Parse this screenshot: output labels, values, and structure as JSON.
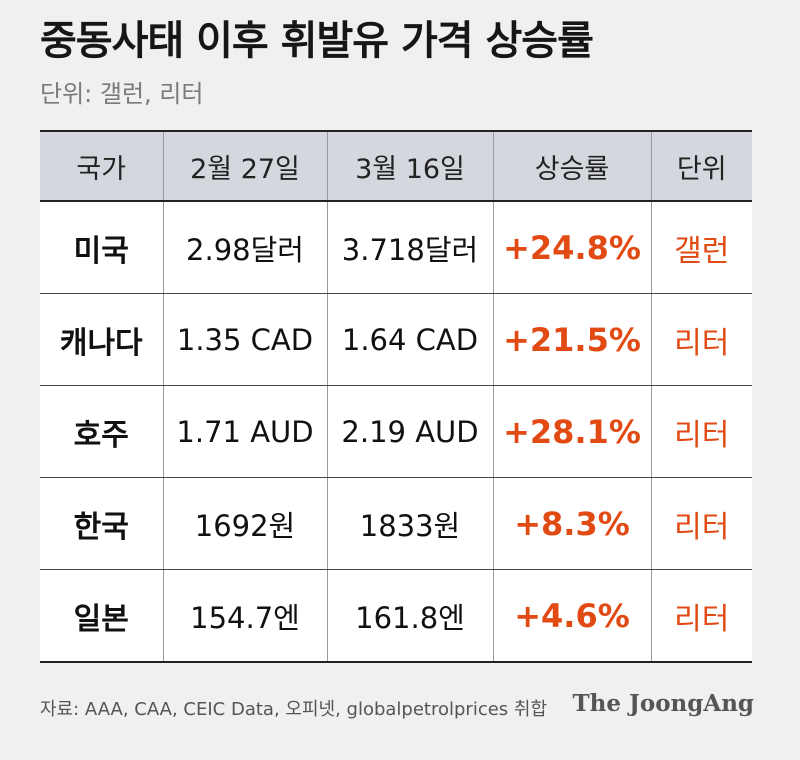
{
  "title": "중동사태 이후 휘발유 가격 상승률",
  "subtitle": "단위: 갤런, 리터",
  "colors": {
    "accent": "#e24a14",
    "header_bg": "#d4d8de",
    "page_bg": "#f0f0f2"
  },
  "table": {
    "headers": [
      "국가",
      "2월 27일",
      "3월 16일",
      "상승률",
      "단위"
    ],
    "rows": [
      [
        "미국",
        "2.98달러",
        "3.718달러",
        "+24.8%",
        "갤런"
      ],
      [
        "캐나다",
        "1.35 CAD",
        "1.64 CAD",
        "+21.5%",
        "리터"
      ],
      [
        "호주",
        "1.71 AUD",
        "2.19 AUD",
        "+28.1%",
        "리터"
      ],
      [
        "한국",
        "1692원",
        "1833원",
        "+8.3%",
        "리터"
      ],
      [
        "일본",
        "154.7엔",
        "161.8엔",
        "+4.6%",
        "리터"
      ]
    ]
  },
  "chart_data": {
    "type": "table",
    "title": "중동사태 이후 휘발유 가격 상승률",
    "subtitle": "단위: 갤런, 리터",
    "columns": [
      "국가",
      "2월 27일",
      "3월 16일",
      "상승률",
      "단위"
    ],
    "rows": [
      {
        "국가": "미국",
        "2월 27일": "2.98달러",
        "3월 16일": "3.718달러",
        "상승률": "+24.8%",
        "단위": "갤런"
      },
      {
        "국가": "캐나다",
        "2월 27일": "1.35 CAD",
        "3월 16일": "1.64 CAD",
        "상승률": "+21.5%",
        "단위": "리터"
      },
      {
        "국가": "호주",
        "2월 27일": "1.71 AUD",
        "3월 16일": "2.19 AUD",
        "상승률": "+28.1%",
        "단위": "리터"
      },
      {
        "국가": "한국",
        "2월 27일": "1692원",
        "3월 16일": "1833원",
        "상승률": "+8.3%",
        "단위": "리터"
      },
      {
        "국가": "일본",
        "2월 27일": "154.7엔",
        "3월 16일": "161.8엔",
        "상승률": "+4.6%",
        "단위": "리터"
      }
    ]
  },
  "source": "자료: AAA, CAA, CEIC Data, 오피넷, globalpetrolprices 취합",
  "brand": "The JoongAng"
}
